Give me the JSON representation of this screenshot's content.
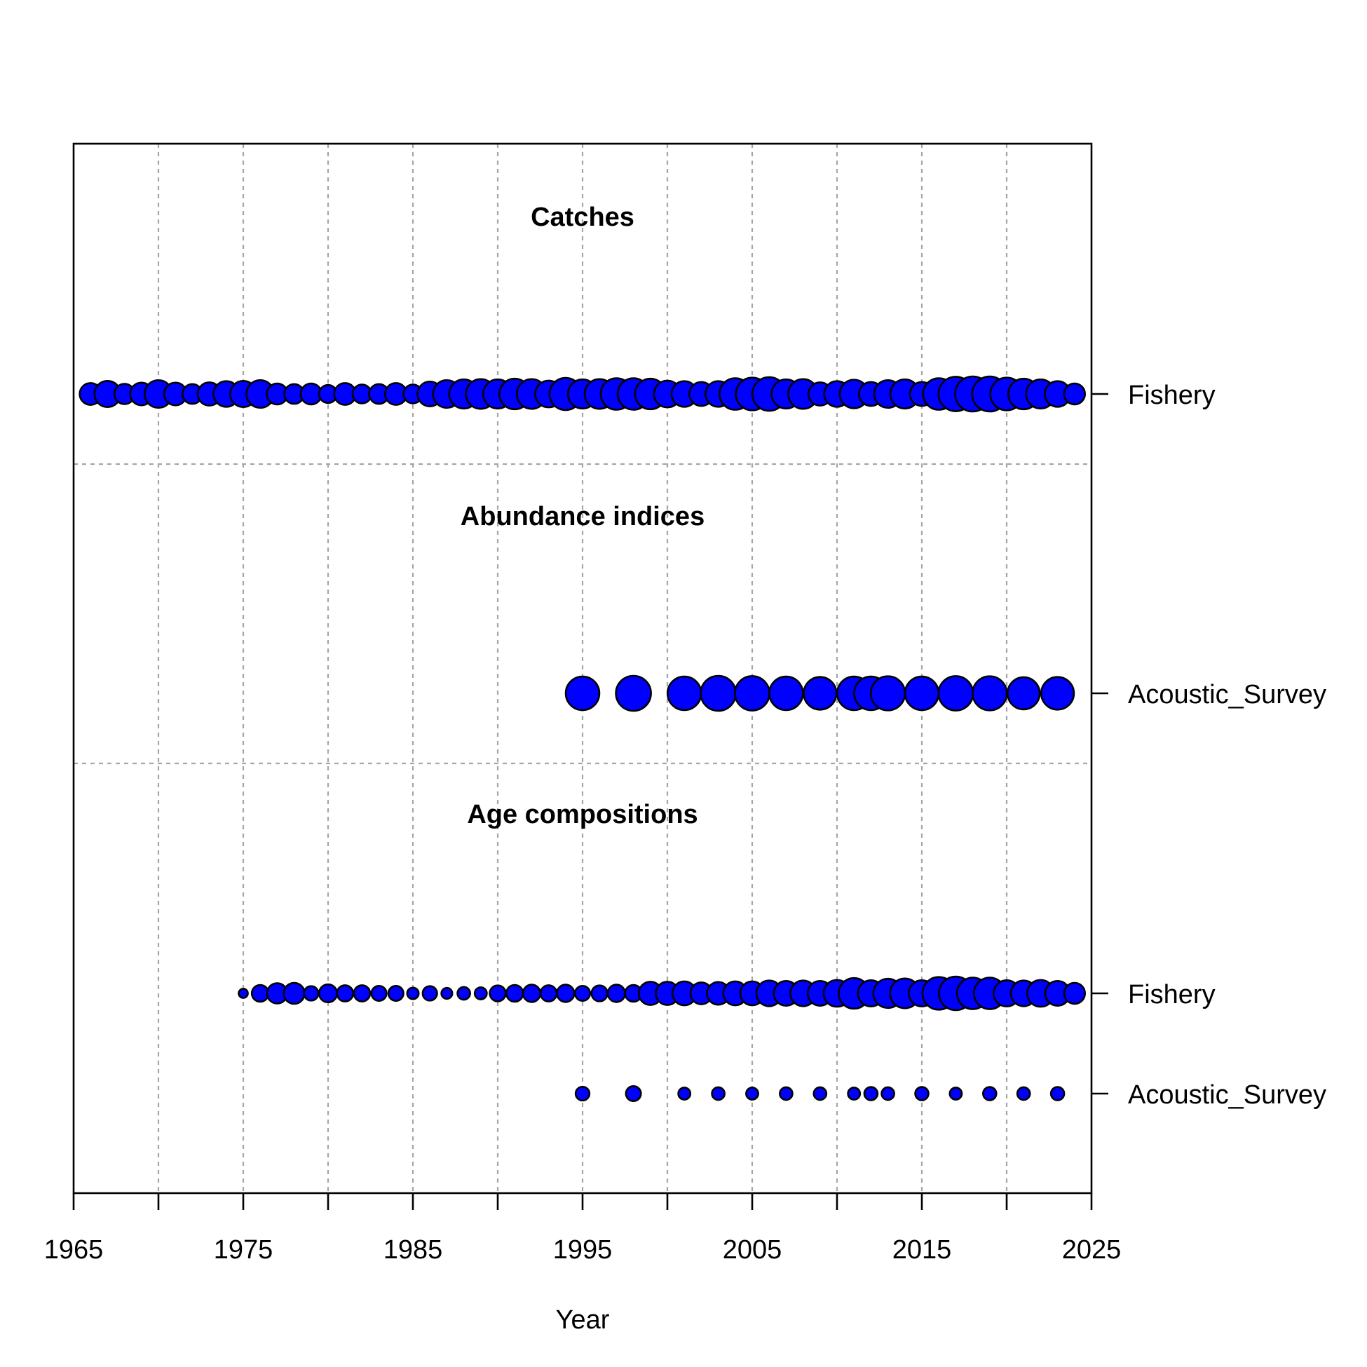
{
  "chart_data": {
    "type": "scatter",
    "xlabel": "Year",
    "xlim": [
      1965,
      2025
    ],
    "x_ticks": [
      1965,
      1975,
      1985,
      1995,
      2005,
      2015,
      2025
    ],
    "grid": true,
    "bubble_color": "#0000ff",
    "outline_color": "#000000",
    "size_note": "bubble radius proportional to relative data amount (0-1)",
    "sections": [
      {
        "title": "Catches",
        "series": [
          {
            "name": "Fishery",
            "points": [
              [
                1966,
                0.55
              ],
              [
                1967,
                0.7
              ],
              [
                1968,
                0.5
              ],
              [
                1969,
                0.58
              ],
              [
                1970,
                0.75
              ],
              [
                1971,
                0.58
              ],
              [
                1972,
                0.48
              ],
              [
                1973,
                0.6
              ],
              [
                1974,
                0.68
              ],
              [
                1975,
                0.7
              ],
              [
                1976,
                0.75
              ],
              [
                1977,
                0.52
              ],
              [
                1978,
                0.48
              ],
              [
                1979,
                0.52
              ],
              [
                1980,
                0.42
              ],
              [
                1981,
                0.55
              ],
              [
                1982,
                0.45
              ],
              [
                1983,
                0.48
              ],
              [
                1984,
                0.55
              ],
              [
                1985,
                0.45
              ],
              [
                1986,
                0.65
              ],
              [
                1987,
                0.75
              ],
              [
                1988,
                0.8
              ],
              [
                1989,
                0.82
              ],
              [
                1990,
                0.8
              ],
              [
                1991,
                0.85
              ],
              [
                1992,
                0.82
              ],
              [
                1993,
                0.72
              ],
              [
                1994,
                0.9
              ],
              [
                1995,
                0.8
              ],
              [
                1996,
                0.82
              ],
              [
                1997,
                0.88
              ],
              [
                1998,
                0.88
              ],
              [
                1999,
                0.85
              ],
              [
                2000,
                0.72
              ],
              [
                2001,
                0.68
              ],
              [
                2002,
                0.62
              ],
              [
                2003,
                0.68
              ],
              [
                2004,
                0.88
              ],
              [
                2005,
                0.92
              ],
              [
                2006,
                0.95
              ],
              [
                2007,
                0.8
              ],
              [
                2008,
                0.82
              ],
              [
                2009,
                0.6
              ],
              [
                2010,
                0.68
              ],
              [
                2011,
                0.78
              ],
              [
                2012,
                0.62
              ],
              [
                2013,
                0.75
              ],
              [
                2014,
                0.8
              ],
              [
                2015,
                0.62
              ],
              [
                2016,
                0.88
              ],
              [
                2017,
                0.98
              ],
              [
                2018,
                1.0
              ],
              [
                2019,
                1.0
              ],
              [
                2020,
                0.92
              ],
              [
                2021,
                0.85
              ],
              [
                2022,
                0.8
              ],
              [
                2023,
                0.68
              ],
              [
                2024,
                0.52
              ]
            ]
          }
        ]
      },
      {
        "title": "Abundance indices",
        "series": [
          {
            "name": "Acoustic_Survey",
            "points": [
              [
                1995,
                0.95
              ],
              [
                1998,
                1.0
              ],
              [
                2001,
                0.95
              ],
              [
                2003,
                1.0
              ],
              [
                2005,
                0.98
              ],
              [
                2007,
                0.95
              ],
              [
                2009,
                0.92
              ],
              [
                2011,
                0.95
              ],
              [
                2012,
                0.95
              ],
              [
                2013,
                0.97
              ],
              [
                2015,
                0.95
              ],
              [
                2017,
                0.98
              ],
              [
                2019,
                0.97
              ],
              [
                2021,
                0.9
              ],
              [
                2023,
                0.92
              ]
            ]
          }
        ]
      },
      {
        "title": "Age compositions",
        "series": [
          {
            "name": "Fishery",
            "points": [
              [
                1975,
                0.12
              ],
              [
                1976,
                0.38
              ],
              [
                1977,
                0.5
              ],
              [
                1978,
                0.52
              ],
              [
                1979,
                0.3
              ],
              [
                1980,
                0.42
              ],
              [
                1981,
                0.36
              ],
              [
                1982,
                0.36
              ],
              [
                1983,
                0.32
              ],
              [
                1984,
                0.32
              ],
              [
                1985,
                0.2
              ],
              [
                1986,
                0.3
              ],
              [
                1987,
                0.18
              ],
              [
                1988,
                0.24
              ],
              [
                1989,
                0.22
              ],
              [
                1990,
                0.35
              ],
              [
                1991,
                0.38
              ],
              [
                1992,
                0.4
              ],
              [
                1993,
                0.36
              ],
              [
                1994,
                0.4
              ],
              [
                1995,
                0.32
              ],
              [
                1996,
                0.35
              ],
              [
                1997,
                0.4
              ],
              [
                1998,
                0.38
              ],
              [
                1999,
                0.6
              ],
              [
                2000,
                0.6
              ],
              [
                2001,
                0.62
              ],
              [
                2002,
                0.55
              ],
              [
                2003,
                0.58
              ],
              [
                2004,
                0.62
              ],
              [
                2005,
                0.62
              ],
              [
                2006,
                0.68
              ],
              [
                2007,
                0.65
              ],
              [
                2008,
                0.68
              ],
              [
                2009,
                0.65
              ],
              [
                2010,
                0.72
              ],
              [
                2011,
                0.85
              ],
              [
                2012,
                0.7
              ],
              [
                2013,
                0.8
              ],
              [
                2014,
                0.82
              ],
              [
                2015,
                0.7
              ],
              [
                2016,
                0.92
              ],
              [
                2017,
                0.95
              ],
              [
                2018,
                0.88
              ],
              [
                2019,
                0.88
              ],
              [
                2020,
                0.7
              ],
              [
                2021,
                0.68
              ],
              [
                2022,
                0.72
              ],
              [
                2023,
                0.65
              ],
              [
                2024,
                0.52
              ]
            ]
          },
          {
            "name": "Acoustic_Survey",
            "points": [
              [
                1995,
                0.28
              ],
              [
                1998,
                0.32
              ],
              [
                2001,
                0.22
              ],
              [
                2003,
                0.24
              ],
              [
                2005,
                0.22
              ],
              [
                2007,
                0.24
              ],
              [
                2009,
                0.24
              ],
              [
                2011,
                0.22
              ],
              [
                2012,
                0.26
              ],
              [
                2013,
                0.24
              ],
              [
                2015,
                0.26
              ],
              [
                2017,
                0.22
              ],
              [
                2019,
                0.26
              ],
              [
                2021,
                0.24
              ],
              [
                2023,
                0.26
              ]
            ]
          }
        ]
      }
    ]
  }
}
